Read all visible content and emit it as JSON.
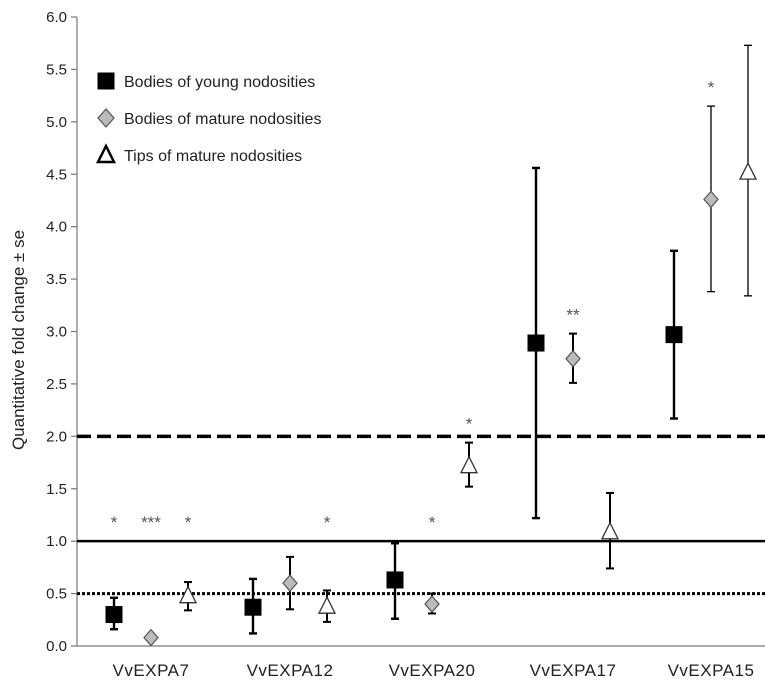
{
  "chart_data": {
    "type": "scatter",
    "ylabel": "Quantitative fold change ± se",
    "xlabel": "",
    "ylim": [
      0,
      6
    ],
    "yticks": [
      "0.0",
      "0.5",
      "1.0",
      "1.5",
      "2.0",
      "2.5",
      "3.0",
      "3.5",
      "4.0",
      "4.5",
      "5.0",
      "5.5",
      "6.0"
    ],
    "categories": [
      "VvEXPA7",
      "VvEXPA12",
      "VvEXPA20",
      "VvEXPA17",
      "VvEXPA15"
    ],
    "grid": false,
    "legend_position": "top-left",
    "series": [
      {
        "name": "Bodies of young nodosities",
        "marker": "square",
        "color": "#000000",
        "values": [
          0.3,
          0.37,
          0.63,
          2.89,
          2.97
        ],
        "err_low": [
          0.16,
          0.12,
          0.26,
          1.22,
          2.17
        ],
        "err_high": [
          0.46,
          0.64,
          0.98,
          4.56,
          3.77
        ],
        "significance": [
          "*",
          "",
          "",
          "",
          ""
        ]
      },
      {
        "name": "Bodies of mature nodosities",
        "marker": "diamond",
        "color": "#bbbbbb",
        "values": [
          0.08,
          0.6,
          0.4,
          2.74,
          4.26
        ],
        "err_low": [
          0.06,
          0.35,
          0.31,
          2.51,
          3.38
        ],
        "err_high": [
          0.1,
          0.85,
          0.5,
          2.98,
          5.15
        ],
        "significance": [
          "***",
          "",
          "*",
          "**",
          "*"
        ]
      },
      {
        "name": "Tips of mature nodosities",
        "marker": "triangle",
        "color": "#ffffff",
        "values": [
          0.48,
          0.38,
          1.72,
          1.09,
          4.52
        ],
        "err_low": [
          0.34,
          0.23,
          1.52,
          0.74,
          3.34
        ],
        "err_high": [
          0.61,
          0.53,
          1.94,
          1.46,
          5.73
        ],
        "significance": [
          "*",
          "*",
          "*",
          "",
          ""
        ]
      }
    ],
    "reference_lines": [
      {
        "y": 2.0,
        "style": "dashed"
      },
      {
        "y": 1.0,
        "style": "solid"
      },
      {
        "y": 0.5,
        "style": "dotted"
      }
    ]
  }
}
